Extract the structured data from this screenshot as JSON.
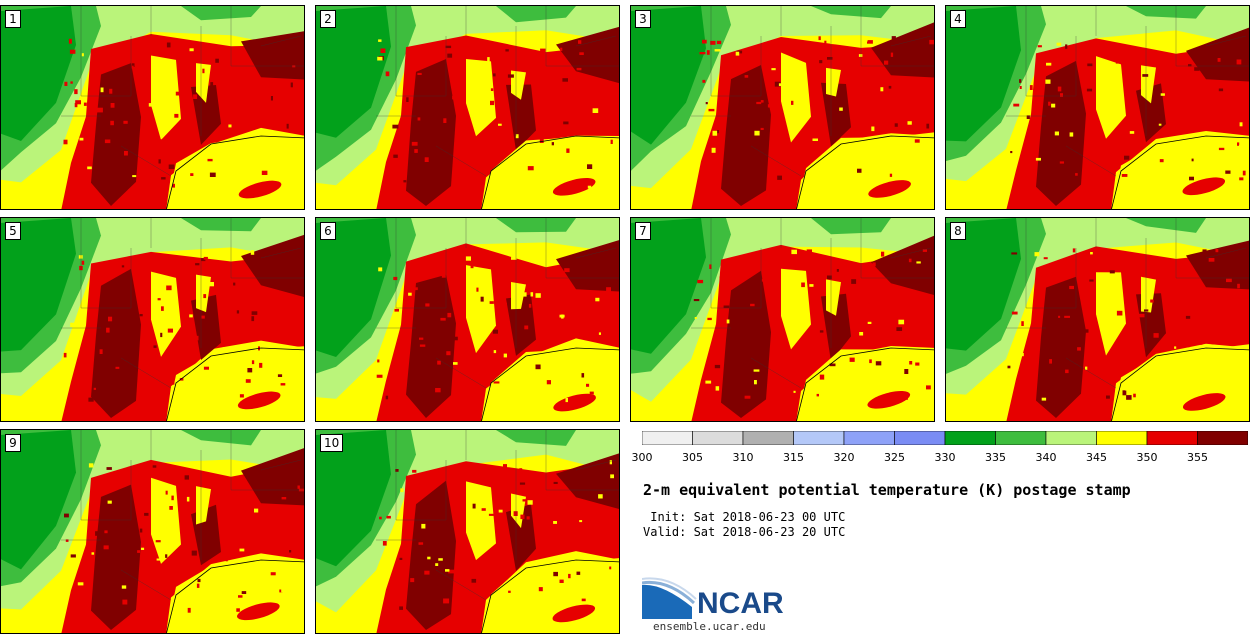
{
  "panels": [
    {
      "label": "1"
    },
    {
      "label": "2"
    },
    {
      "label": "3"
    },
    {
      "label": "4"
    },
    {
      "label": "5"
    },
    {
      "label": "6"
    },
    {
      "label": "7"
    },
    {
      "label": "8"
    },
    {
      "label": "9"
    },
    {
      "label": "10"
    }
  ],
  "colorbar": {
    "ticks": [
      "300",
      "305",
      "310",
      "315",
      "320",
      "325",
      "330",
      "335",
      "340",
      "345",
      "350",
      "355"
    ],
    "colors": [
      "#f0f0f0",
      "#dcdcdc",
      "#b0b0b0",
      "#b4c8f8",
      "#8ea2f8",
      "#7a8cf4",
      "#02a11b",
      "#3ebd3e",
      "#baf47a",
      "#ffff00",
      "#e60000",
      "#800000"
    ]
  },
  "title": "2-m equivalent potential temperature (K) postage stamp",
  "init": " Init: Sat 2018-06-23 00 UTC",
  "valid": "Valid: Sat 2018-06-23 20 UTC",
  "logo": {
    "name": "NCAR",
    "url": "ensemble.ucar.edu"
  },
  "field_colors": {
    "dark_green": "#02a11b",
    "green": "#3ebd3e",
    "light_green": "#baf47a",
    "yellow": "#ffff00",
    "red": "#e60000",
    "dark_red": "#800000"
  }
}
